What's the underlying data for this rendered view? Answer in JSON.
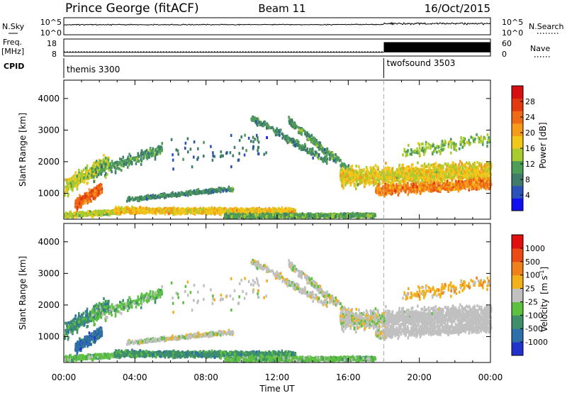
{
  "header": {
    "station": "Prince George (fitACF)",
    "beam": "Beam 11",
    "date": "16/Oct/2015"
  },
  "chart_data": [
    {
      "type": "line",
      "panel": "noise",
      "left_label": "N.Sky",
      "right_label": "N.Search",
      "left_ticks": [
        "10^5",
        "10^0"
      ],
      "right_ticks": [
        "10^5",
        "10^0"
      ],
      "series": [
        {
          "values_start": 3.2,
          "values_end": 3.3,
          "level_change_at_hour": 18,
          "level_after": 3.6
        }
      ]
    },
    {
      "type": "line",
      "panel": "frequency",
      "left_label_lines": [
        "Freq.",
        "[MHz]"
      ],
      "right_label": "Nave",
      "left_ticks": [
        18,
        8
      ],
      "right_ticks": [
        60,
        0
      ],
      "freq_mhz": 10.4,
      "nave_before": 12,
      "nave_after": 53,
      "nave_change_at_hour": 18
    },
    {
      "type": "table",
      "panel": "cpid",
      "label": "CPID",
      "segments": [
        {
          "name": "themis 3300",
          "start_hour": 0
        },
        {
          "name": "twofsound 3503",
          "start_hour": 18
        }
      ]
    },
    {
      "type": "heatmap",
      "panel": "power",
      "ylabel": "Slant Range [km]",
      "xlabel": "Time UT",
      "x_ticks": [
        "00:00",
        "04:00",
        "08:00",
        "12:00",
        "16:00",
        "20:00",
        "00:00"
      ],
      "y_ticks": [
        1000,
        2000,
        3000,
        4000
      ],
      "xlim": [
        0,
        24
      ],
      "ylim": [
        180,
        4580
      ],
      "colorbar_label": "Power [dB]",
      "colorbar_ticks": [
        4,
        8,
        12,
        16,
        20,
        24,
        28
      ],
      "colorbar_range": [
        0,
        30
      ],
      "colors": [
        "#1010ee",
        "#2a52b8",
        "#3f7d6a",
        "#4f9e58",
        "#a8cc30",
        "#f2c61a",
        "#f59a1a",
        "#ee6a14",
        "#e23a10",
        "#d61010"
      ]
    },
    {
      "type": "heatmap",
      "panel": "velocity",
      "ylabel": "Slant Range [km]",
      "xlabel": "Time UT",
      "x_ticks": [
        "00:00",
        "04:00",
        "08:00",
        "12:00",
        "16:00",
        "20:00",
        "00:00"
      ],
      "y_ticks": [
        1000,
        2000,
        3000,
        4000
      ],
      "xlim": [
        0,
        24
      ],
      "ylim": [
        180,
        4580
      ],
      "colorbar_label_main": "Velocity",
      "colorbar_label_unit": "[m s",
      "colorbar_label_exp": "-1",
      "colorbar_ticks": [
        "1000",
        "500",
        "100",
        "25",
        "-25",
        "-100",
        "-500",
        "-1000"
      ],
      "colors": [
        "#2233cc",
        "#2d6fa8",
        "#3f8f6a",
        "#5cc040",
        "#c0c0c0",
        "#f2b01a",
        "#f0801a",
        "#ea4a14",
        "#e01010"
      ]
    }
  ],
  "time_axis": {
    "label": "Time UT",
    "ticks": [
      "00:00",
      "04:00",
      "08:00",
      "12:00",
      "16:00",
      "20:00",
      "00:00"
    ]
  }
}
